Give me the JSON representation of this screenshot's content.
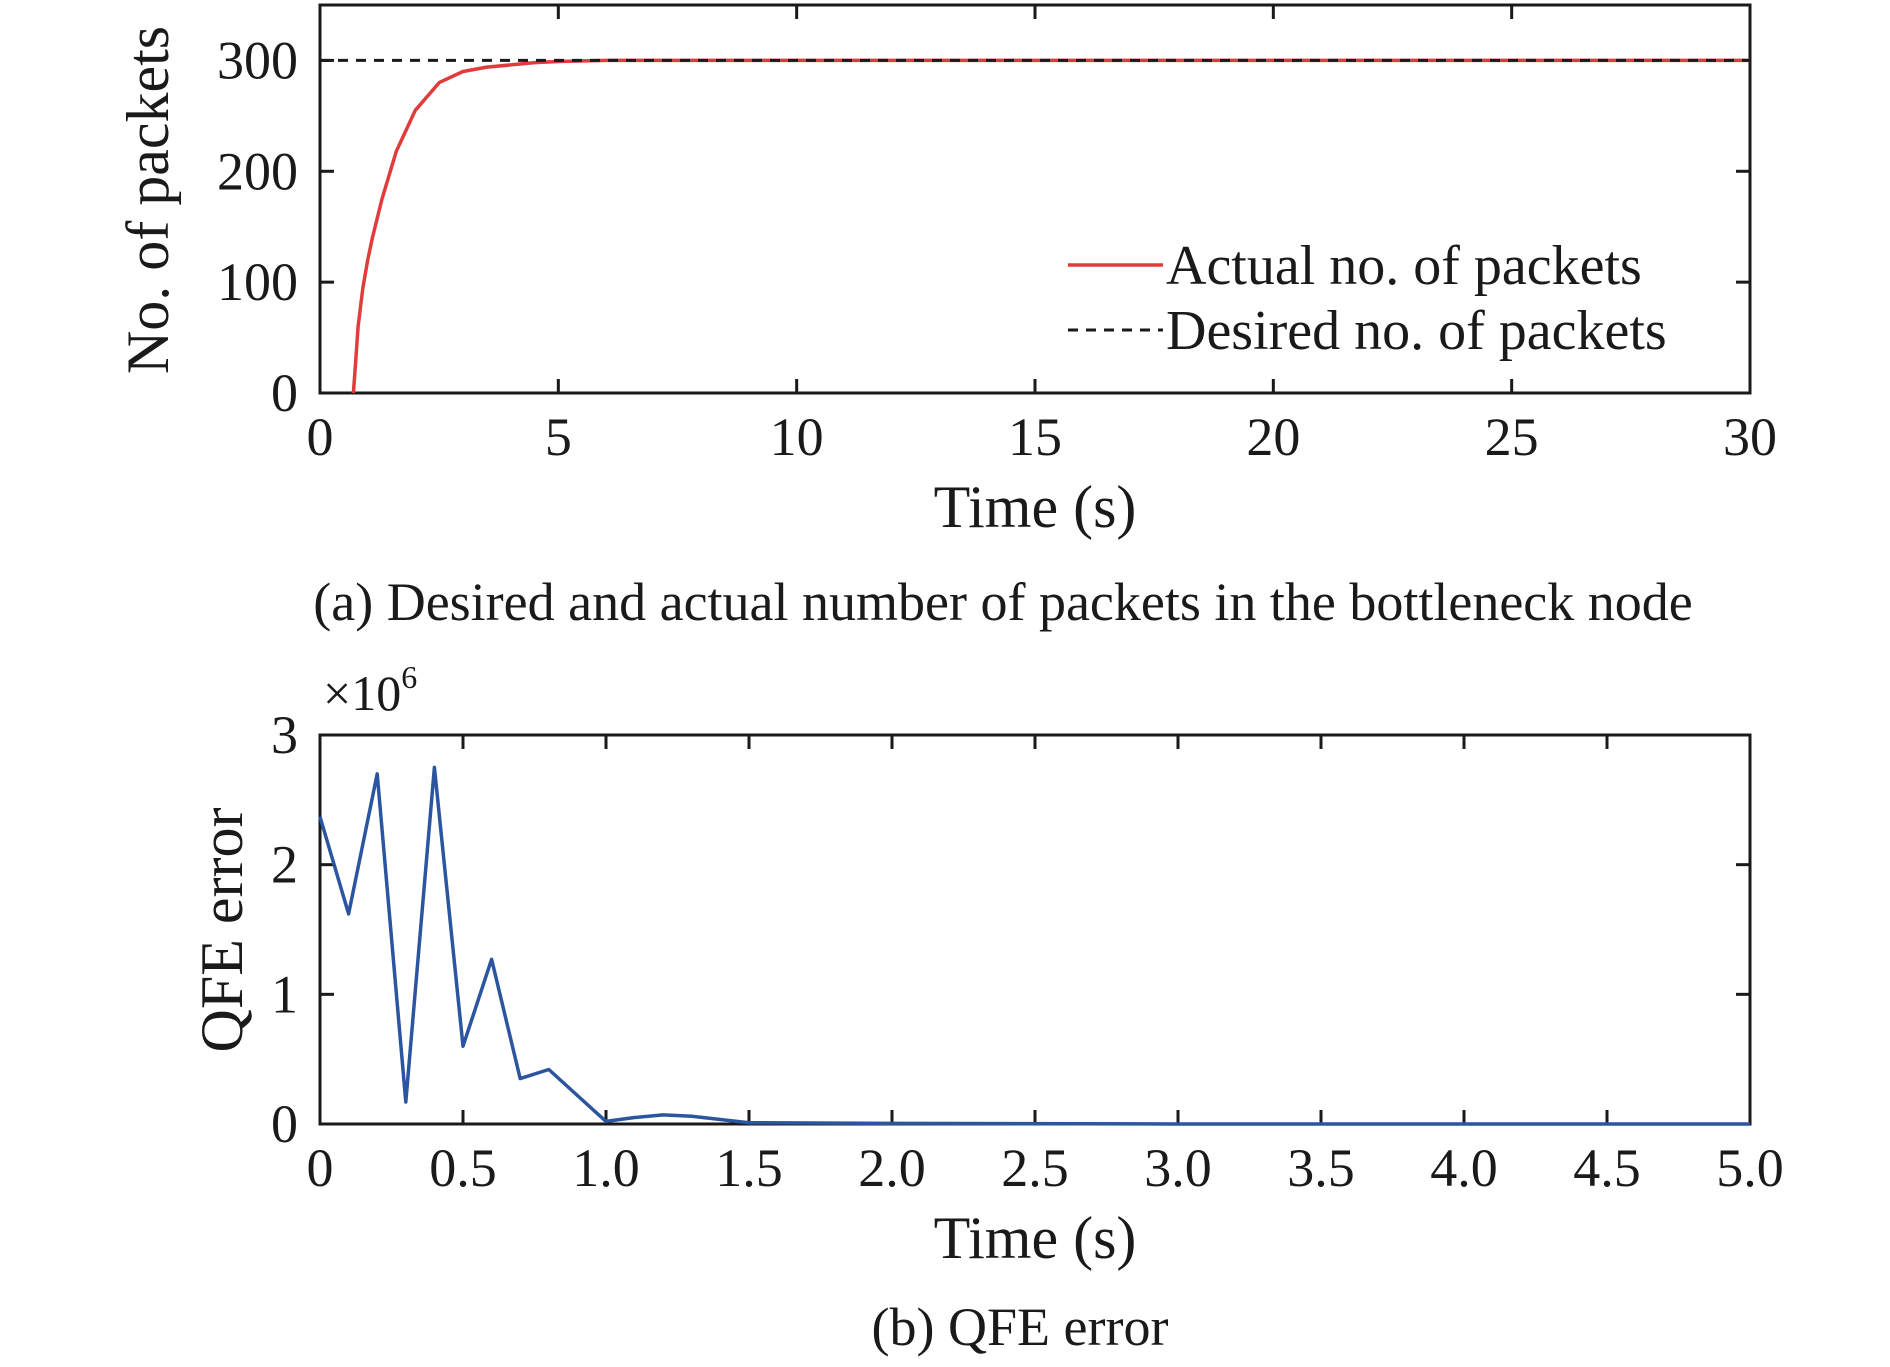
{
  "chart_data": [
    {
      "type": "line",
      "caption": "(a) Desired and actual number of packets in the bottleneck node",
      "xlabel": "Time (s)",
      "ylabel": "No. of packets",
      "xlim": [
        0,
        30
      ],
      "ylim": [
        0,
        350
      ],
      "xticks": [
        0,
        5,
        10,
        15,
        20,
        25,
        30
      ],
      "xtick_labels": [
        "0",
        "5",
        "10",
        "15",
        "20",
        "25",
        "30"
      ],
      "yticks": [
        0,
        100,
        200,
        300
      ],
      "ytick_labels": [
        "0",
        "100",
        "200",
        "300"
      ],
      "grid": false,
      "legend_position": "bottom-right",
      "series": [
        {
          "name": "Actual no. of packets",
          "color": "#e03c3c",
          "dash": "solid",
          "x": [
            0.7,
            0.75,
            0.8,
            0.9,
            1.0,
            1.1,
            1.3,
            1.6,
            2.0,
            2.5,
            3.0,
            3.5,
            4.0,
            4.5,
            5.0,
            6.0,
            7.0,
            8.0,
            10.0,
            15.0,
            20.0,
            25.0,
            30.0
          ],
          "y": [
            0,
            30,
            60,
            95,
            120,
            140,
            175,
            218,
            255,
            280,
            290,
            294,
            296,
            298,
            299,
            300,
            300,
            300,
            300,
            300,
            300,
            300,
            300
          ]
        },
        {
          "name": "Desired no. of packets",
          "color": "#1a1a1a",
          "dash": "dashed",
          "x": [
            0,
            30
          ],
          "y": [
            300,
            300
          ]
        }
      ]
    },
    {
      "type": "line",
      "caption": "(b) QFE error",
      "xlabel": "Time (s)",
      "ylabel": "QFE error",
      "y_multiplier_base": "×10",
      "y_multiplier_exp": "6",
      "xlim": [
        0,
        5
      ],
      "ylim": [
        0,
        3
      ],
      "xticks": [
        0,
        0.5,
        1.0,
        1.5,
        2.0,
        2.5,
        3.0,
        3.5,
        4.0,
        4.5,
        5.0
      ],
      "xtick_labels": [
        "0",
        "0.5",
        "1.0",
        "1.5",
        "2.0",
        "2.5",
        "3.0",
        "3.5",
        "4.0",
        "4.5",
        "5.0"
      ],
      "yticks": [
        0,
        1,
        2,
        3
      ],
      "ytick_labels": [
        "0",
        "1",
        "2",
        "3"
      ],
      "grid": false,
      "series": [
        {
          "color": "#2c55a0",
          "dash": "solid",
          "x": [
            0,
            0.1,
            0.2,
            0.3,
            0.4,
            0.5,
            0.6,
            0.7,
            0.8,
            0.9,
            1.0,
            1.1,
            1.2,
            1.3,
            1.5,
            2.0,
            3.0,
            4.0,
            5.0
          ],
          "y": [
            2.37,
            1.62,
            2.7,
            0.17,
            2.75,
            0.6,
            1.27,
            0.35,
            0.42,
            0.22,
            0.02,
            0.05,
            0.07,
            0.06,
            0.01,
            0.005,
            0.0,
            0.0,
            0.0
          ]
        }
      ]
    }
  ]
}
